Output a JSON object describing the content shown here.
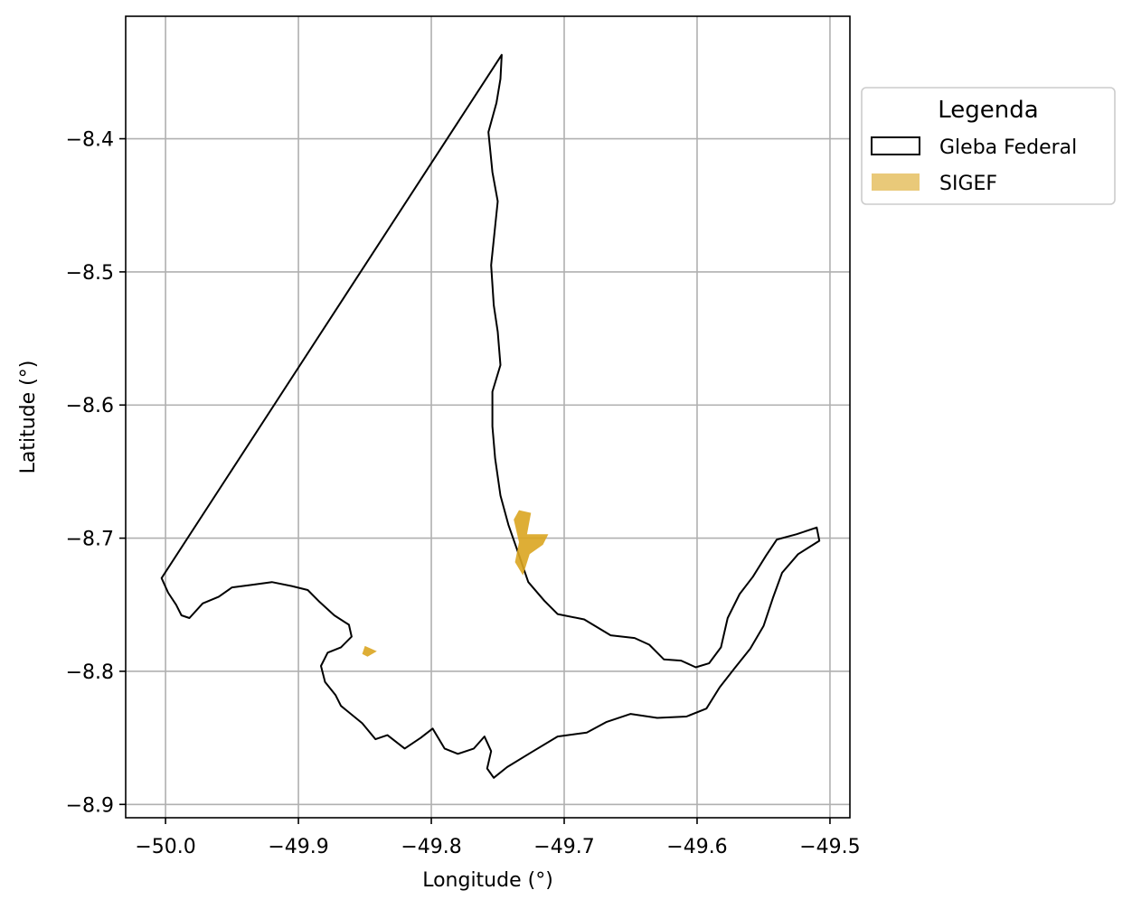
{
  "chart_data": {
    "type": "map",
    "xlabel": "Longitude (°)",
    "ylabel": "Latitude (°)",
    "xlim": [
      -50.03,
      -49.485
    ],
    "ylim": [
      -8.91,
      -8.308
    ],
    "xticks": [
      -50.0,
      -49.9,
      -49.8,
      -49.7,
      -49.6,
      -49.5
    ],
    "xtick_labels": [
      "−50.0",
      "−49.9",
      "−49.8",
      "−49.7",
      "−49.6",
      "−49.5"
    ],
    "yticks": [
      -8.4,
      -8.5,
      -8.6,
      -8.7,
      -8.8,
      -8.9
    ],
    "ytick_labels": [
      "−8.4",
      "−8.5",
      "−8.6",
      "−8.7",
      "−8.8",
      "−8.9"
    ],
    "grid": true,
    "legend": {
      "title": "Legenda",
      "placement": "outside-upper-right",
      "entries": [
        {
          "label": "Gleba Federal",
          "style": "outline",
          "color": "#000000"
        },
        {
          "label": "SIGEF",
          "style": "fill",
          "color": "#DAA520"
        }
      ]
    },
    "series": [
      {
        "name": "Gleba Federal",
        "geometry": "polygon",
        "color": "#000000",
        "coordinates": [
          [
            -49.747,
            -8.337
          ],
          [
            -49.748,
            -8.355
          ],
          [
            -49.751,
            -8.373
          ],
          [
            -49.757,
            -8.395
          ],
          [
            -49.754,
            -8.425
          ],
          [
            -49.75,
            -8.447
          ],
          [
            -49.752,
            -8.466
          ],
          [
            -49.755,
            -8.495
          ],
          [
            -49.753,
            -8.525
          ],
          [
            -49.75,
            -8.545
          ],
          [
            -49.748,
            -8.57
          ],
          [
            -49.754,
            -8.59
          ],
          [
            -49.754,
            -8.616
          ],
          [
            -49.752,
            -8.64
          ],
          [
            -49.748,
            -8.668
          ],
          [
            -49.742,
            -8.69
          ],
          [
            -49.736,
            -8.707
          ],
          [
            -49.727,
            -8.733
          ],
          [
            -49.715,
            -8.747
          ],
          [
            -49.705,
            -8.757
          ],
          [
            -49.685,
            -8.761
          ],
          [
            -49.665,
            -8.773
          ],
          [
            -49.647,
            -8.775
          ],
          [
            -49.636,
            -8.78
          ],
          [
            -49.625,
            -8.791
          ],
          [
            -49.612,
            -8.792
          ],
          [
            -49.601,
            -8.797
          ],
          [
            -49.591,
            -8.794
          ],
          [
            -49.582,
            -8.782
          ],
          [
            -49.577,
            -8.76
          ],
          [
            -49.568,
            -8.742
          ],
          [
            -49.558,
            -8.729
          ],
          [
            -49.548,
            -8.713
          ],
          [
            -49.54,
            -8.701
          ],
          [
            -49.525,
            -8.697
          ],
          [
            -49.51,
            -8.692
          ],
          [
            -49.508,
            -8.702
          ],
          [
            -49.524,
            -8.712
          ],
          [
            -49.536,
            -8.726
          ],
          [
            -49.543,
            -8.745
          ],
          [
            -49.55,
            -8.766
          ],
          [
            -49.56,
            -8.783
          ],
          [
            -49.572,
            -8.798
          ],
          [
            -49.583,
            -8.812
          ],
          [
            -49.593,
            -8.828
          ],
          [
            -49.608,
            -8.834
          ],
          [
            -49.63,
            -8.835
          ],
          [
            -49.65,
            -8.832
          ],
          [
            -49.668,
            -8.838
          ],
          [
            -49.683,
            -8.846
          ],
          [
            -49.705,
            -8.849
          ],
          [
            -49.725,
            -8.861
          ],
          [
            -49.743,
            -8.872
          ],
          [
            -49.753,
            -8.88
          ],
          [
            -49.758,
            -8.873
          ],
          [
            -49.755,
            -8.86
          ],
          [
            -49.76,
            -8.849
          ],
          [
            -49.768,
            -8.858
          ],
          [
            -49.78,
            -8.862
          ],
          [
            -49.79,
            -8.858
          ],
          [
            -49.799,
            -8.843
          ],
          [
            -49.808,
            -8.85
          ],
          [
            -49.82,
            -8.858
          ],
          [
            -49.833,
            -8.848
          ],
          [
            -49.842,
            -8.851
          ],
          [
            -49.852,
            -8.839
          ],
          [
            -49.868,
            -8.826
          ],
          [
            -49.872,
            -8.818
          ],
          [
            -49.88,
            -8.808
          ],
          [
            -49.883,
            -8.796
          ],
          [
            -49.878,
            -8.786
          ],
          [
            -49.868,
            -8.782
          ],
          [
            -49.86,
            -8.774
          ],
          [
            -49.862,
            -8.765
          ],
          [
            -49.873,
            -8.758
          ],
          [
            -49.884,
            -8.748
          ],
          [
            -49.893,
            -8.739
          ],
          [
            -49.905,
            -8.736
          ],
          [
            -49.92,
            -8.733
          ],
          [
            -49.935,
            -8.735
          ],
          [
            -49.95,
            -8.737
          ],
          [
            -49.96,
            -8.744
          ],
          [
            -49.972,
            -8.749
          ],
          [
            -49.982,
            -8.76
          ],
          [
            -49.988,
            -8.758
          ],
          [
            -49.992,
            -8.75
          ],
          [
            -49.998,
            -8.741
          ],
          [
            -50.003,
            -8.73
          ],
          [
            -49.747,
            -8.337
          ]
        ]
      },
      {
        "name": "SIGEF",
        "geometry": "polygon",
        "color": "#DAA520",
        "coordinates": [
          [
            -49.738,
            -8.686
          ],
          [
            -49.734,
            -8.679
          ],
          [
            -49.725,
            -8.681
          ],
          [
            -49.728,
            -8.697
          ],
          [
            -49.712,
            -8.697
          ],
          [
            -49.716,
            -8.705
          ],
          [
            -49.726,
            -8.712
          ],
          [
            -49.731,
            -8.728
          ],
          [
            -49.737,
            -8.718
          ],
          [
            -49.734,
            -8.703
          ],
          [
            -49.738,
            -8.686
          ]
        ]
      },
      {
        "name": "SIGEF",
        "geometry": "polygon",
        "color": "#DAA520",
        "coordinates": [
          [
            -49.85,
            -8.781
          ],
          [
            -49.841,
            -8.785
          ],
          [
            -49.848,
            -8.789
          ],
          [
            -49.852,
            -8.787
          ],
          [
            -49.85,
            -8.781
          ]
        ]
      }
    ]
  }
}
